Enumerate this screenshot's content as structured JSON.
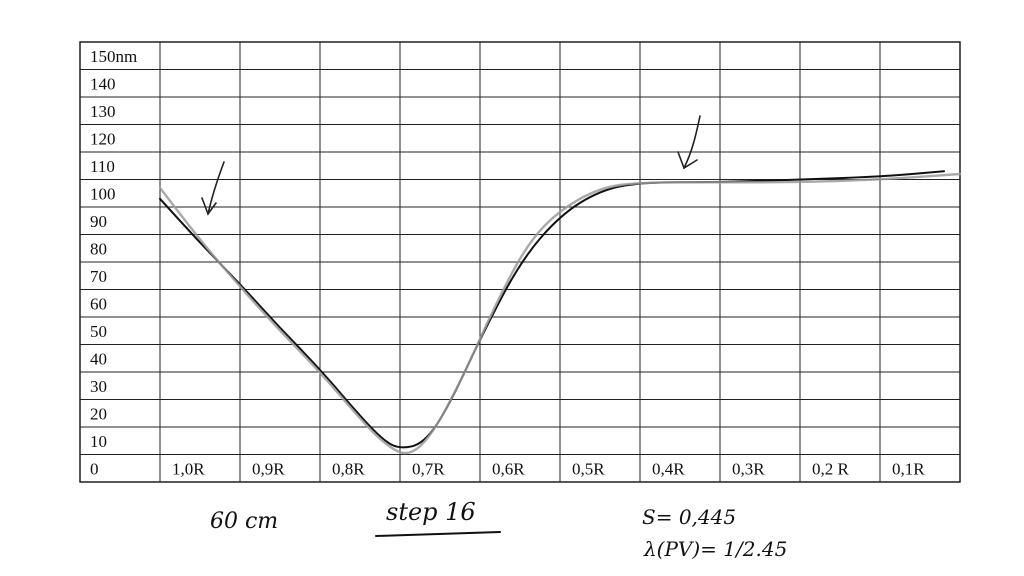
{
  "chart_data": {
    "type": "line",
    "y_ticks": [
      "150nm",
      "140",
      "130",
      "120",
      "110",
      "100",
      "90",
      "80",
      "70",
      "60",
      "50",
      "40",
      "30",
      "20",
      "10",
      "0"
    ],
    "x_ticks": [
      "1,0R",
      "0,9R",
      "0,8R",
      "0,7R",
      "0,6R",
      "0,5R",
      "0,4R",
      "0,3R",
      "0,2 R",
      "0,1R"
    ],
    "ylim": [
      0,
      150
    ],
    "xlim": [
      1.0,
      0.0
    ],
    "grid": true,
    "series": [
      {
        "color": "#111111",
        "points": [
          [
            1.0,
            98
          ],
          [
            0.95,
            82
          ],
          [
            0.9,
            67
          ],
          [
            0.85,
            51
          ],
          [
            0.8,
            36
          ],
          [
            0.75,
            19
          ],
          [
            0.72,
            10
          ],
          [
            0.7,
            7
          ],
          [
            0.67,
            9
          ],
          [
            0.64,
            22
          ],
          [
            0.6,
            47
          ],
          [
            0.55,
            75
          ],
          [
            0.5,
            92
          ],
          [
            0.45,
            101
          ],
          [
            0.4,
            104
          ],
          [
            0.3,
            104
          ],
          [
            0.2,
            105
          ],
          [
            0.1,
            106
          ],
          [
            0.02,
            108
          ]
        ]
      },
      {
        "color": "#9a9a9a",
        "points": [
          [
            1.0,
            102
          ],
          [
            0.95,
            83
          ],
          [
            0.9,
            66
          ],
          [
            0.85,
            50
          ],
          [
            0.8,
            35
          ],
          [
            0.75,
            18
          ],
          [
            0.72,
            9
          ],
          [
            0.69,
            4
          ],
          [
            0.66,
            12
          ],
          [
            0.62,
            34
          ],
          [
            0.58,
            60
          ],
          [
            0.54,
            82
          ],
          [
            0.5,
            94
          ],
          [
            0.45,
            102
          ],
          [
            0.4,
            104
          ],
          [
            0.3,
            104
          ],
          [
            0.2,
            104
          ],
          [
            0.1,
            105
          ],
          [
            0.0,
            107
          ]
        ]
      }
    ]
  },
  "annotations": {
    "distance": "60 cm",
    "step": "step 16",
    "s_value": "S= 0,445",
    "lambda": "λ(PV)= 1/2.45"
  }
}
